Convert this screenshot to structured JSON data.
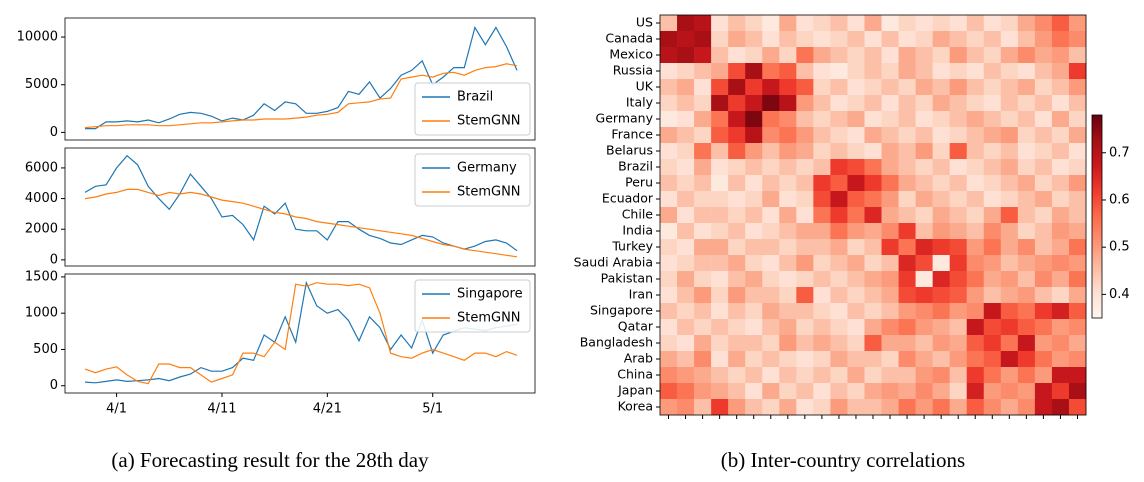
{
  "chart_data": [
    {
      "type": "line",
      "legend": "lower right",
      "ylim": [
        -800,
        12000
      ],
      "yticks": [
        0,
        5000,
        10000
      ],
      "series": [
        {
          "name": "Brazil",
          "color": "#1f77b4",
          "values": [
            400,
            400,
            1100,
            1100,
            1200,
            1100,
            1300,
            1000,
            1400,
            1900,
            2100,
            2000,
            1700,
            1200,
            1500,
            1300,
            1800,
            3000,
            2300,
            3200,
            3000,
            2000,
            2000,
            2200,
            2600,
            4300,
            4000,
            5300,
            3600,
            4600,
            6000,
            6500,
            7500,
            5000,
            5800,
            6800,
            6800,
            11000,
            9200,
            11000,
            9000,
            6500
          ]
        },
        {
          "name": "StemGNN",
          "color": "#ff7f0e",
          "values": [
            500,
            600,
            700,
            700,
            800,
            800,
            800,
            700,
            700,
            800,
            900,
            1000,
            1000,
            1100,
            1200,
            1300,
            1300,
            1400,
            1400,
            1400,
            1500,
            1600,
            1800,
            1900,
            2100,
            3000,
            3100,
            3200,
            3500,
            3600,
            5600,
            5800,
            6000,
            5800,
            6200,
            6300,
            6000,
            6500,
            6800,
            6900,
            7200,
            7000
          ]
        }
      ]
    },
    {
      "type": "line",
      "legend": "upper right",
      "ylim": [
        -400,
        7300
      ],
      "yticks": [
        0,
        2000,
        4000,
        6000
      ],
      "series": [
        {
          "name": "Germany",
          "color": "#1f77b4",
          "values": [
            4400,
            4800,
            4900,
            6000,
            6800,
            6200,
            4800,
            4000,
            3300,
            4300,
            5600,
            4800,
            4000,
            2800,
            2900,
            2300,
            1300,
            3500,
            3000,
            3700,
            2000,
            1900,
            1900,
            1300,
            2500,
            2500,
            2000,
            1600,
            1400,
            1100,
            1000,
            1300,
            1600,
            1500,
            1100,
            900,
            700,
            900,
            1200,
            1300,
            1100,
            600
          ]
        },
        {
          "name": "StemGNN",
          "color": "#ff7f0e",
          "values": [
            4000,
            4100,
            4300,
            4400,
            4600,
            4600,
            4400,
            4200,
            4400,
            4300,
            4400,
            4300,
            4100,
            3900,
            3800,
            3700,
            3500,
            3300,
            3100,
            3000,
            2800,
            2700,
            2500,
            2400,
            2300,
            2200,
            2100,
            2000,
            1900,
            1800,
            1700,
            1600,
            1400,
            1200,
            1000,
            900,
            700,
            600,
            500,
            400,
            300,
            200
          ]
        }
      ]
    },
    {
      "type": "line",
      "legend": "upper right",
      "ylim": [
        -100,
        1540
      ],
      "yticks": [
        0,
        500,
        1000,
        1500
      ],
      "categories": [
        null,
        null,
        null,
        "4/1",
        null,
        null,
        null,
        null,
        null,
        null,
        null,
        null,
        null,
        "4/11",
        null,
        null,
        null,
        null,
        null,
        null,
        null,
        null,
        null,
        "4/21",
        null,
        null,
        null,
        null,
        null,
        null,
        null,
        null,
        null,
        "5/1",
        null,
        null,
        null,
        null,
        null,
        null,
        null,
        null
      ],
      "series": [
        {
          "name": "Singapore",
          "color": "#1f77b4",
          "values": [
            50,
            40,
            60,
            80,
            60,
            70,
            80,
            100,
            70,
            120,
            160,
            250,
            200,
            200,
            250,
            380,
            350,
            700,
            600,
            950,
            600,
            1420,
            1100,
            1000,
            1050,
            900,
            620,
            950,
            800,
            500,
            700,
            520,
            900,
            450,
            700,
            750,
            800,
            780,
            760,
            800,
            820,
            850
          ]
        },
        {
          "name": "StemGNN",
          "color": "#ff7f0e",
          "values": [
            230,
            180,
            230,
            260,
            150,
            60,
            30,
            300,
            300,
            250,
            250,
            150,
            50,
            100,
            150,
            450,
            450,
            400,
            600,
            500,
            1400,
            1370,
            1420,
            1400,
            1400,
            1380,
            1400,
            1350,
            1000,
            450,
            400,
            380,
            450,
            500,
            450,
            400,
            350,
            450,
            450,
            400,
            470,
            420
          ]
        }
      ]
    },
    {
      "type": "heatmap",
      "colormap": "Reds",
      "zlim": [
        0.35,
        0.78
      ],
      "zticks": [
        0.4,
        0.5,
        0.6,
        0.7
      ],
      "categories": [
        "US",
        "Canada",
        "Mexico",
        "Russia",
        "UK",
        "Italy",
        "Germany",
        "France",
        "Belarus",
        "Brazil",
        "Peru",
        "Ecuador",
        "Chile",
        "India",
        "Turkey",
        "Saudi Arabia",
        "Pakistan",
        "Iran",
        "Singapore",
        "Qatar",
        "Bangladesh",
        "Arab",
        "China",
        "Japan",
        "Korea"
      ],
      "values": [
        [
          0.45,
          0.72,
          0.7,
          0.4,
          0.45,
          0.42,
          0.38,
          0.48,
          0.4,
          0.42,
          0.45,
          0.4,
          0.48,
          0.38,
          0.42,
          0.4,
          0.42,
          0.4,
          0.45,
          0.4,
          0.42,
          0.48,
          0.52,
          0.58,
          0.5
        ],
        [
          0.72,
          0.7,
          0.72,
          0.42,
          0.48,
          0.45,
          0.4,
          0.45,
          0.42,
          0.4,
          0.42,
          0.45,
          0.4,
          0.45,
          0.4,
          0.42,
          0.48,
          0.45,
          0.42,
          0.45,
          0.4,
          0.45,
          0.5,
          0.55,
          0.52
        ],
        [
          0.7,
          0.72,
          0.68,
          0.45,
          0.4,
          0.42,
          0.48,
          0.42,
          0.55,
          0.48,
          0.45,
          0.42,
          0.45,
          0.4,
          0.48,
          0.45,
          0.42,
          0.5,
          0.45,
          0.42,
          0.48,
          0.52,
          0.48,
          0.5,
          0.45
        ],
        [
          0.4,
          0.42,
          0.45,
          0.48,
          0.6,
          0.72,
          0.55,
          0.58,
          0.45,
          0.4,
          0.38,
          0.42,
          0.45,
          0.42,
          0.48,
          0.45,
          0.4,
          0.42,
          0.4,
          0.45,
          0.42,
          0.4,
          0.45,
          0.48,
          0.62
        ],
        [
          0.45,
          0.48,
          0.4,
          0.6,
          0.72,
          0.62,
          0.68,
          0.62,
          0.58,
          0.42,
          0.45,
          0.4,
          0.42,
          0.45,
          0.42,
          0.48,
          0.45,
          0.5,
          0.45,
          0.42,
          0.45,
          0.48,
          0.42,
          0.45,
          0.5
        ],
        [
          0.42,
          0.45,
          0.42,
          0.72,
          0.62,
          0.68,
          0.76,
          0.7,
          0.5,
          0.45,
          0.4,
          0.42,
          0.45,
          0.4,
          0.45,
          0.42,
          0.48,
          0.45,
          0.42,
          0.4,
          0.45,
          0.42,
          0.45,
          0.4,
          0.45
        ],
        [
          0.38,
          0.4,
          0.48,
          0.55,
          0.68,
          0.76,
          0.55,
          0.52,
          0.45,
          0.42,
          0.45,
          0.48,
          0.4,
          0.42,
          0.45,
          0.4,
          0.42,
          0.45,
          0.48,
          0.45,
          0.42,
          0.45,
          0.4,
          0.48,
          0.42
        ],
        [
          0.48,
          0.45,
          0.42,
          0.58,
          0.62,
          0.7,
          0.52,
          0.55,
          0.5,
          0.45,
          0.42,
          0.4,
          0.48,
          0.45,
          0.42,
          0.45,
          0.4,
          0.42,
          0.45,
          0.48,
          0.5,
          0.42,
          0.45,
          0.42,
          0.48
        ],
        [
          0.4,
          0.42,
          0.55,
          0.45,
          0.58,
          0.5,
          0.45,
          0.5,
          0.48,
          0.42,
          0.45,
          0.42,
          0.4,
          0.48,
          0.45,
          0.5,
          0.42,
          0.58,
          0.45,
          0.42,
          0.45,
          0.4,
          0.42,
          0.45,
          0.4
        ],
        [
          0.42,
          0.4,
          0.48,
          0.4,
          0.42,
          0.45,
          0.42,
          0.45,
          0.42,
          0.45,
          0.62,
          0.6,
          0.55,
          0.48,
          0.45,
          0.42,
          0.45,
          0.4,
          0.42,
          0.45,
          0.48,
          0.42,
          0.45,
          0.4,
          0.42
        ],
        [
          0.45,
          0.42,
          0.45,
          0.38,
          0.45,
          0.4,
          0.45,
          0.42,
          0.45,
          0.62,
          0.58,
          0.68,
          0.62,
          0.55,
          0.48,
          0.45,
          0.42,
          0.45,
          0.4,
          0.42,
          0.45,
          0.48,
          0.42,
          0.45,
          0.5
        ],
        [
          0.4,
          0.45,
          0.42,
          0.42,
          0.4,
          0.42,
          0.48,
          0.4,
          0.42,
          0.6,
          0.68,
          0.58,
          0.55,
          0.5,
          0.42,
          0.48,
          0.45,
          0.42,
          0.45,
          0.4,
          0.42,
          0.45,
          0.48,
          0.42,
          0.45
        ],
        [
          0.48,
          0.4,
          0.45,
          0.45,
          0.42,
          0.45,
          0.4,
          0.48,
          0.4,
          0.55,
          0.62,
          0.55,
          0.65,
          0.48,
          0.45,
          0.42,
          0.48,
          0.45,
          0.42,
          0.48,
          0.58,
          0.45,
          0.42,
          0.48,
          0.45
        ],
        [
          0.38,
          0.45,
          0.4,
          0.42,
          0.45,
          0.4,
          0.42,
          0.45,
          0.48,
          0.48,
          0.55,
          0.5,
          0.48,
          0.52,
          0.62,
          0.45,
          0.5,
          0.48,
          0.45,
          0.52,
          0.48,
          0.42,
          0.45,
          0.5,
          0.48
        ],
        [
          0.42,
          0.4,
          0.48,
          0.48,
          0.42,
          0.45,
          0.45,
          0.42,
          0.45,
          0.45,
          0.48,
          0.42,
          0.45,
          0.62,
          0.55,
          0.65,
          0.62,
          0.6,
          0.5,
          0.55,
          0.48,
          0.52,
          0.45,
          0.48,
          0.55
        ],
        [
          0.4,
          0.42,
          0.45,
          0.45,
          0.48,
          0.42,
          0.4,
          0.45,
          0.5,
          0.42,
          0.45,
          0.48,
          0.42,
          0.45,
          0.65,
          0.6,
          0.38,
          0.62,
          0.52,
          0.5,
          0.45,
          0.48,
          0.5,
          0.52,
          0.5
        ],
        [
          0.42,
          0.48,
          0.42,
          0.4,
          0.45,
          0.48,
          0.42,
          0.4,
          0.42,
          0.45,
          0.42,
          0.45,
          0.48,
          0.5,
          0.62,
          0.38,
          0.65,
          0.6,
          0.55,
          0.48,
          0.5,
          0.45,
          0.52,
          0.48,
          0.55
        ],
        [
          0.4,
          0.45,
          0.5,
          0.42,
          0.5,
          0.45,
          0.45,
          0.42,
          0.58,
          0.4,
          0.45,
          0.42,
          0.45,
          0.48,
          0.6,
          0.62,
          0.6,
          0.58,
          0.5,
          0.45,
          0.48,
          0.5,
          0.45,
          0.42,
          0.48
        ],
        [
          0.45,
          0.42,
          0.45,
          0.4,
          0.45,
          0.42,
          0.48,
          0.45,
          0.45,
          0.42,
          0.4,
          0.45,
          0.42,
          0.45,
          0.5,
          0.52,
          0.55,
          0.5,
          0.52,
          0.68,
          0.58,
          0.55,
          0.62,
          0.66,
          0.58
        ],
        [
          0.4,
          0.45,
          0.42,
          0.45,
          0.42,
          0.4,
          0.45,
          0.48,
          0.42,
          0.45,
          0.42,
          0.4,
          0.48,
          0.52,
          0.55,
          0.5,
          0.48,
          0.45,
          0.68,
          0.6,
          0.62,
          0.58,
          0.55,
          0.5,
          0.52
        ],
        [
          0.42,
          0.4,
          0.48,
          0.42,
          0.45,
          0.45,
          0.42,
          0.5,
          0.45,
          0.48,
          0.45,
          0.42,
          0.58,
          0.48,
          0.48,
          0.45,
          0.5,
          0.48,
          0.58,
          0.62,
          0.55,
          0.68,
          0.5,
          0.52,
          0.48
        ],
        [
          0.48,
          0.45,
          0.52,
          0.4,
          0.48,
          0.42,
          0.45,
          0.42,
          0.4,
          0.42,
          0.48,
          0.45,
          0.45,
          0.42,
          0.52,
          0.48,
          0.45,
          0.5,
          0.55,
          0.58,
          0.68,
          0.62,
          0.55,
          0.5,
          0.52
        ],
        [
          0.52,
          0.5,
          0.48,
          0.45,
          0.42,
          0.45,
          0.4,
          0.45,
          0.42,
          0.45,
          0.42,
          0.48,
          0.42,
          0.45,
          0.45,
          0.5,
          0.52,
          0.45,
          0.62,
          0.55,
          0.5,
          0.55,
          0.5,
          0.68,
          0.68
        ],
        [
          0.58,
          0.55,
          0.5,
          0.48,
          0.45,
          0.4,
          0.48,
          0.42,
          0.45,
          0.4,
          0.45,
          0.42,
          0.48,
          0.5,
          0.48,
          0.52,
          0.48,
          0.42,
          0.66,
          0.5,
          0.52,
          0.5,
          0.68,
          0.62,
          0.72
        ],
        [
          0.5,
          0.52,
          0.45,
          0.62,
          0.5,
          0.45,
          0.42,
          0.48,
          0.4,
          0.42,
          0.5,
          0.45,
          0.45,
          0.48,
          0.55,
          0.5,
          0.55,
          0.48,
          0.58,
          0.52,
          0.48,
          0.52,
          0.68,
          0.72,
          0.6
        ]
      ]
    }
  ],
  "captions": [
    "(a) Forecasting result for the 28th day",
    "(b) Inter-country correlations"
  ]
}
